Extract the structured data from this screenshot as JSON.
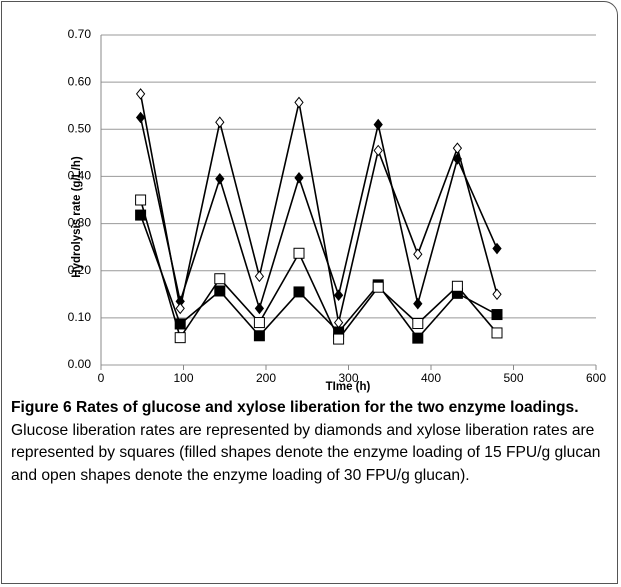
{
  "chart_data": {
    "type": "line",
    "x": [
      48,
      96,
      144,
      192,
      240,
      288,
      336,
      384,
      432,
      480
    ],
    "series": [
      {
        "color": "#000000",
        "marker": "diamond",
        "filled": true,
        "values": [
          0.525,
          0.135,
          0.395,
          0.12,
          0.397,
          0.148,
          0.51,
          0.13,
          0.437,
          0.247
        ]
      },
      {
        "color": "#000000",
        "marker": "diamond",
        "filled": false,
        "values": [
          0.575,
          0.12,
          0.515,
          0.188,
          0.557,
          0.09,
          0.455,
          0.235,
          0.46,
          0.15
        ]
      },
      {
        "color": "#000000",
        "marker": "square",
        "filled": true,
        "values": [
          0.318,
          0.087,
          0.157,
          0.062,
          0.155,
          0.07,
          0.17,
          0.057,
          0.152,
          0.107
        ]
      },
      {
        "color": "#000000",
        "marker": "square",
        "filled": false,
        "values": [
          0.35,
          0.058,
          0.183,
          0.09,
          0.237,
          0.055,
          0.165,
          0.088,
          0.167,
          0.068
        ]
      }
    ],
    "xlabel": "TIme (h)",
    "ylabel": "Hydrolysis rate (g/L/h)",
    "xlim": [
      0,
      600
    ],
    "xticks": [
      0,
      100,
      200,
      300,
      400,
      500,
      600
    ],
    "ylim": [
      0,
      0.7
    ],
    "yticks": [
      {
        "value": 0,
        "label": "0.00"
      },
      {
        "value": 0.1,
        "label": "0.10"
      },
      {
        "value": 0.2,
        "label": "0.20"
      },
      {
        "value": 0.3,
        "label": "0.30"
      },
      {
        "value": 0.4,
        "label": "0.40"
      },
      {
        "value": 0.5,
        "label": "0.50"
      },
      {
        "value": 0.6,
        "label": "0.60"
      },
      {
        "value": 0.7,
        "label": "0.70"
      }
    ],
    "grid": true,
    "caption_label": "Figure 6",
    "caption_title": "Rates of glucose and xylose liberation for the two enzyme loadings.",
    "caption_text": "Glucose liberation rates are represented by diamonds and xylose liberation rates are represented by squares (filled shapes denote the enzyme loading of 15 FPU/g glucan and open shapes denote the enzyme loading of 30 FPU/g glucan)."
  }
}
